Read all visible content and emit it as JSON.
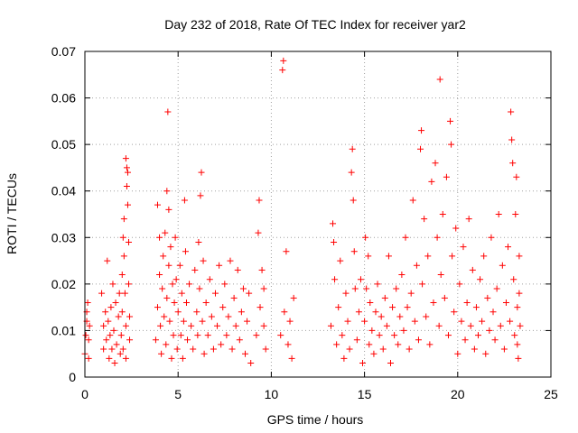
{
  "chart_data": {
    "type": "scatter",
    "title": "Day 232 of 2018, Rate Of TEC Index for receiver yar2",
    "xlabel": "GPS time / hours",
    "ylabel": "ROTI / TECUs",
    "xlim": [
      0,
      25
    ],
    "ylim": [
      0,
      0.07
    ],
    "xticks": [
      0,
      5,
      10,
      15,
      20,
      25
    ],
    "xtick_labels": [
      "0",
      "5",
      "10",
      "15",
      "20",
      "25"
    ],
    "yticks": [
      0,
      0.01,
      0.02,
      0.03,
      0.04,
      0.05,
      0.06,
      0.07
    ],
    "ytick_labels": [
      "0",
      "0.01",
      "0.02",
      "0.03",
      "0.04",
      "0.05",
      "0.06",
      "0.07"
    ],
    "grid": true,
    "marker": "+",
    "marker_color": "#ff0000",
    "series": [
      {
        "name": "ROTI",
        "points": [
          [
            0.0,
            0.005
          ],
          [
            0.05,
            0.009
          ],
          [
            0.1,
            0.012
          ],
          [
            0.15,
            0.016
          ],
          [
            0.2,
            0.008
          ],
          [
            0.2,
            0.004
          ],
          [
            0.25,
            0.011
          ],
          [
            0.1,
            0.014
          ],
          [
            0.9,
            0.018
          ],
          [
            1.0,
            0.011
          ],
          [
            1.0,
            0.006
          ],
          [
            1.1,
            0.014
          ],
          [
            1.15,
            0.008
          ],
          [
            1.2,
            0.025
          ],
          [
            1.25,
            0.012
          ],
          [
            1.3,
            0.004
          ],
          [
            1.35,
            0.009
          ],
          [
            1.4,
            0.015
          ],
          [
            1.45,
            0.006
          ],
          [
            1.5,
            0.02
          ],
          [
            1.55,
            0.01
          ],
          [
            1.6,
            0.003
          ],
          [
            1.65,
            0.016
          ],
          [
            1.7,
            0.007
          ],
          [
            1.8,
            0.013
          ],
          [
            1.85,
            0.018
          ],
          [
            1.9,
            0.005
          ],
          [
            1.95,
            0.009
          ],
          [
            2.0,
            0.022
          ],
          [
            2.0,
            0.014
          ],
          [
            2.05,
            0.006
          ],
          [
            2.1,
            0.026
          ],
          [
            2.1,
            0.034
          ],
          [
            2.15,
            0.018
          ],
          [
            2.2,
            0.011
          ],
          [
            2.2,
            0.047
          ],
          [
            2.25,
            0.045
          ],
          [
            2.25,
            0.041
          ],
          [
            2.3,
            0.037
          ],
          [
            2.3,
            0.044
          ],
          [
            2.35,
            0.029
          ],
          [
            2.35,
            0.02
          ],
          [
            2.4,
            0.013
          ],
          [
            2.4,
            0.008
          ],
          [
            2.2,
            0.004
          ],
          [
            2.05,
            0.03
          ],
          [
            3.8,
            0.008
          ],
          [
            3.9,
            0.015
          ],
          [
            3.9,
            0.037
          ],
          [
            4.0,
            0.03
          ],
          [
            4.0,
            0.022
          ],
          [
            4.05,
            0.011
          ],
          [
            4.1,
            0.005
          ],
          [
            4.15,
            0.019
          ],
          [
            4.2,
            0.026
          ],
          [
            4.25,
            0.013
          ],
          [
            4.3,
            0.031
          ],
          [
            4.35,
            0.007
          ],
          [
            4.4,
            0.017
          ],
          [
            4.4,
            0.04
          ],
          [
            4.45,
            0.057
          ],
          [
            4.5,
            0.024
          ],
          [
            4.5,
            0.036
          ],
          [
            4.55,
            0.012
          ],
          [
            4.6,
            0.028
          ],
          [
            4.65,
            0.004
          ],
          [
            4.7,
            0.02
          ],
          [
            4.75,
            0.009
          ],
          [
            4.8,
            0.016
          ],
          [
            4.85,
            0.03
          ],
          [
            4.9,
            0.021
          ],
          [
            4.95,
            0.006
          ],
          [
            5.0,
            0.014
          ],
          [
            5.1,
            0.024
          ],
          [
            5.15,
            0.009
          ],
          [
            5.2,
            0.018
          ],
          [
            5.25,
            0.004
          ],
          [
            5.3,
            0.012
          ],
          [
            5.35,
            0.038
          ],
          [
            5.4,
            0.027
          ],
          [
            5.45,
            0.016
          ],
          [
            5.5,
            0.008
          ],
          [
            5.6,
            0.02
          ],
          [
            5.7,
            0.011
          ],
          [
            5.8,
            0.006
          ],
          [
            5.9,
            0.023
          ],
          [
            6.0,
            0.014
          ],
          [
            6.05,
            0.009
          ],
          [
            6.1,
            0.029
          ],
          [
            6.15,
            0.019
          ],
          [
            6.2,
            0.039
          ],
          [
            6.25,
            0.044
          ],
          [
            6.3,
            0.012
          ],
          [
            6.35,
            0.025
          ],
          [
            6.4,
            0.005
          ],
          [
            6.5,
            0.016
          ],
          [
            6.6,
            0.009
          ],
          [
            6.7,
            0.021
          ],
          [
            6.8,
            0.013
          ],
          [
            6.9,
            0.006
          ],
          [
            7.0,
            0.018
          ],
          [
            7.1,
            0.011
          ],
          [
            7.2,
            0.024
          ],
          [
            7.3,
            0.007
          ],
          [
            7.4,
            0.015
          ],
          [
            7.5,
            0.02
          ],
          [
            7.6,
            0.009
          ],
          [
            7.7,
            0.013
          ],
          [
            7.8,
            0.025
          ],
          [
            7.9,
            0.006
          ],
          [
            8.0,
            0.017
          ],
          [
            8.1,
            0.011
          ],
          [
            8.2,
            0.023
          ],
          [
            8.3,
            0.008
          ],
          [
            8.4,
            0.014
          ],
          [
            8.5,
            0.019
          ],
          [
            8.6,
            0.005
          ],
          [
            8.7,
            0.012
          ],
          [
            8.8,
            0.018
          ],
          [
            8.9,
            0.003
          ],
          [
            9.2,
            0.009
          ],
          [
            9.3,
            0.031
          ],
          [
            9.35,
            0.038
          ],
          [
            9.4,
            0.015
          ],
          [
            9.5,
            0.023
          ],
          [
            9.6,
            0.011
          ],
          [
            9.7,
            0.006
          ],
          [
            9.6,
            0.019
          ],
          [
            10.5,
            0.009
          ],
          [
            10.6,
            0.066
          ],
          [
            10.65,
            0.068
          ],
          [
            10.7,
            0.014
          ],
          [
            10.8,
            0.027
          ],
          [
            10.9,
            0.007
          ],
          [
            11.0,
            0.012
          ],
          [
            11.1,
            0.004
          ],
          [
            11.2,
            0.017
          ],
          [
            13.2,
            0.011
          ],
          [
            13.3,
            0.033
          ],
          [
            13.35,
            0.029
          ],
          [
            13.4,
            0.021
          ],
          [
            13.5,
            0.007
          ],
          [
            13.6,
            0.015
          ],
          [
            13.7,
            0.025
          ],
          [
            13.8,
            0.009
          ],
          [
            13.9,
            0.004
          ],
          [
            14.0,
            0.018
          ],
          [
            14.1,
            0.012
          ],
          [
            14.2,
            0.006
          ],
          [
            14.3,
            0.044
          ],
          [
            14.35,
            0.049
          ],
          [
            14.4,
            0.038
          ],
          [
            14.45,
            0.027
          ],
          [
            14.5,
            0.019
          ],
          [
            14.6,
            0.008
          ],
          [
            14.7,
            0.014
          ],
          [
            14.8,
            0.021
          ],
          [
            14.9,
            0.003
          ],
          [
            15.0,
            0.012
          ],
          [
            15.05,
            0.03
          ],
          [
            15.1,
            0.019
          ],
          [
            15.2,
            0.026
          ],
          [
            15.25,
            0.007
          ],
          [
            15.3,
            0.016
          ],
          [
            15.4,
            0.01
          ],
          [
            15.5,
            0.005
          ],
          [
            15.6,
            0.014
          ],
          [
            15.7,
            0.02
          ],
          [
            15.8,
            0.009
          ],
          [
            15.9,
            0.013
          ],
          [
            16.0,
            0.006
          ],
          [
            16.1,
            0.017
          ],
          [
            16.2,
            0.011
          ],
          [
            16.3,
            0.026
          ],
          [
            16.4,
            0.003
          ],
          [
            16.5,
            0.015
          ],
          [
            16.6,
            0.009
          ],
          [
            16.7,
            0.019
          ],
          [
            16.8,
            0.007
          ],
          [
            16.9,
            0.013
          ],
          [
            17.0,
            0.022
          ],
          [
            17.1,
            0.01
          ],
          [
            17.2,
            0.03
          ],
          [
            17.3,
            0.015
          ],
          [
            17.4,
            0.006
          ],
          [
            17.5,
            0.018
          ],
          [
            17.6,
            0.038
          ],
          [
            17.7,
            0.012
          ],
          [
            17.8,
            0.024
          ],
          [
            17.9,
            0.008
          ],
          [
            18.0,
            0.049
          ],
          [
            18.05,
            0.053
          ],
          [
            18.1,
            0.02
          ],
          [
            18.2,
            0.034
          ],
          [
            18.3,
            0.013
          ],
          [
            18.4,
            0.026
          ],
          [
            18.5,
            0.007
          ],
          [
            18.6,
            0.042
          ],
          [
            18.7,
            0.016
          ],
          [
            18.8,
            0.046
          ],
          [
            18.9,
            0.03
          ],
          [
            19.0,
            0.011
          ],
          [
            19.05,
            0.064
          ],
          [
            19.1,
            0.022
          ],
          [
            19.2,
            0.035
          ],
          [
            19.3,
            0.017
          ],
          [
            19.4,
            0.043
          ],
          [
            19.5,
            0.009
          ],
          [
            19.6,
            0.055
          ],
          [
            19.65,
            0.05
          ],
          [
            19.7,
            0.026
          ],
          [
            19.8,
            0.014
          ],
          [
            19.9,
            0.032
          ],
          [
            20.0,
            0.005
          ],
          [
            20.1,
            0.02
          ],
          [
            20.2,
            0.012
          ],
          [
            20.3,
            0.028
          ],
          [
            20.4,
            0.008
          ],
          [
            20.5,
            0.016
          ],
          [
            20.6,
            0.034
          ],
          [
            20.7,
            0.011
          ],
          [
            20.8,
            0.023
          ],
          [
            20.9,
            0.006
          ],
          [
            21.0,
            0.015
          ],
          [
            21.1,
            0.009
          ],
          [
            21.2,
            0.021
          ],
          [
            21.3,
            0.012
          ],
          [
            21.4,
            0.026
          ],
          [
            21.5,
            0.005
          ],
          [
            21.6,
            0.017
          ],
          [
            21.7,
            0.01
          ],
          [
            21.8,
            0.03
          ],
          [
            21.9,
            0.014
          ],
          [
            22.0,
            0.008
          ],
          [
            22.1,
            0.019
          ],
          [
            22.2,
            0.035
          ],
          [
            22.3,
            0.011
          ],
          [
            22.4,
            0.024
          ],
          [
            22.5,
            0.006
          ],
          [
            22.6,
            0.016
          ],
          [
            22.7,
            0.028
          ],
          [
            22.8,
            0.012
          ],
          [
            22.85,
            0.057
          ],
          [
            22.9,
            0.051
          ],
          [
            22.95,
            0.046
          ],
          [
            23.0,
            0.021
          ],
          [
            23.05,
            0.009
          ],
          [
            23.1,
            0.035
          ],
          [
            23.15,
            0.043
          ],
          [
            23.2,
            0.015
          ],
          [
            23.25,
            0.004
          ],
          [
            23.3,
            0.026
          ],
          [
            23.35,
            0.011
          ],
          [
            23.3,
            0.018
          ],
          [
            23.2,
            0.007
          ]
        ]
      }
    ]
  }
}
